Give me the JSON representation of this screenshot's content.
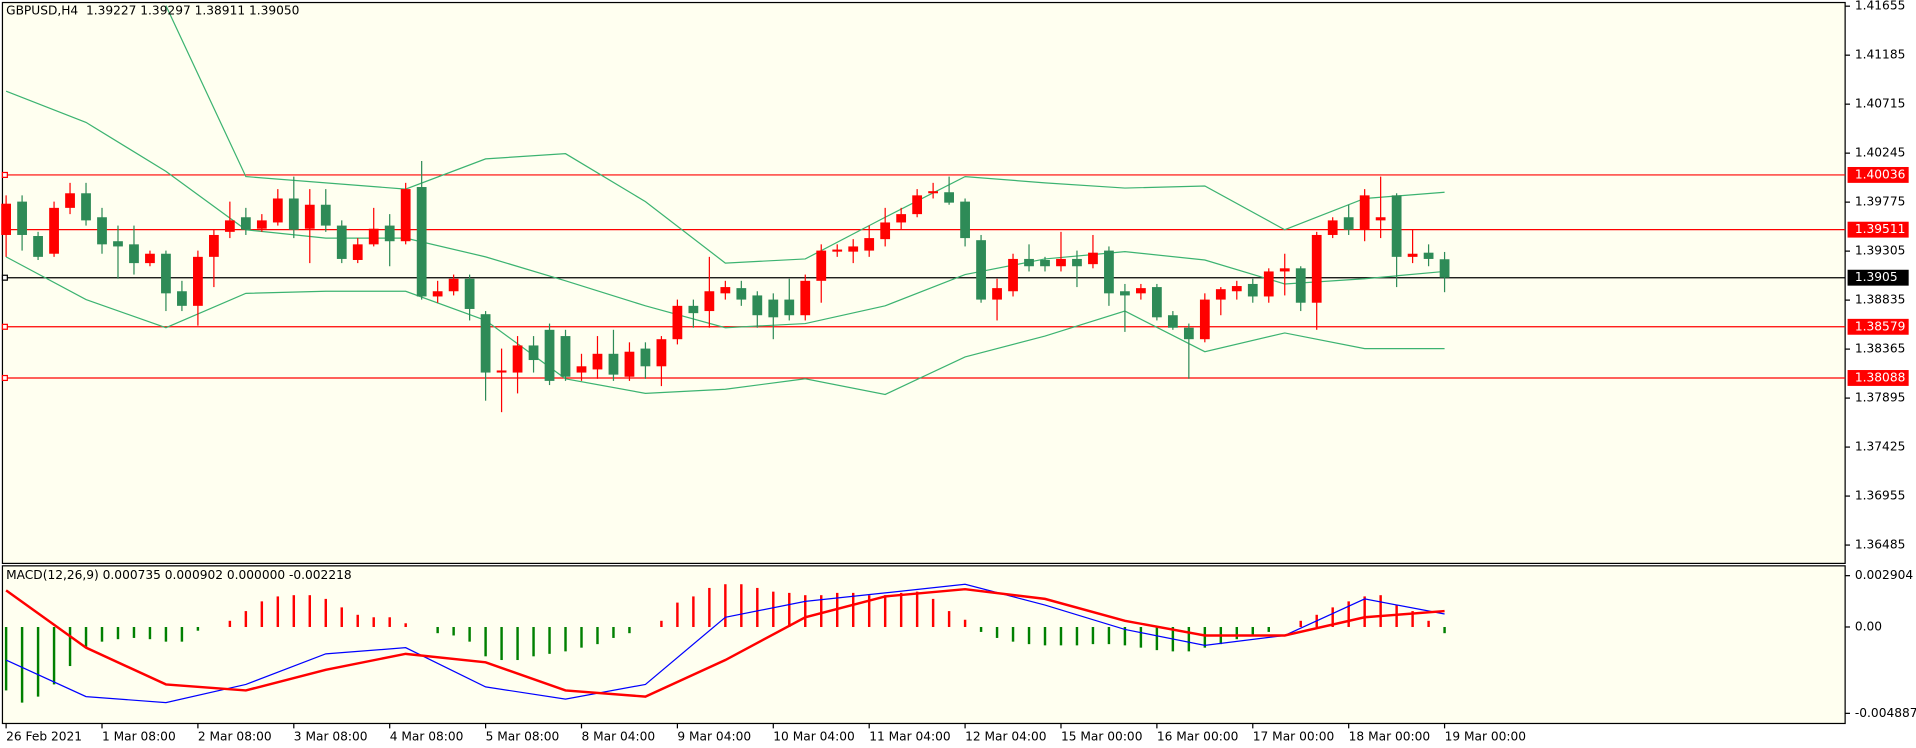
{
  "chart_data": [
    {
      "type": "candlestick",
      "title": "GBPUSD,H4  1.39227 1.39297 1.38911 1.39050",
      "categories": [
        "26 Feb 2021",
        null,
        null,
        null,
        null,
        null,
        "1 Mar 08:00",
        null,
        null,
        null,
        null,
        null,
        "2 Mar 08:00",
        null,
        null,
        null,
        null,
        null,
        "3 Mar 08:00",
        null,
        null,
        null,
        null,
        null,
        "4 Mar 08:00",
        null,
        null,
        null,
        null,
        null,
        "5 Mar 08:00",
        null,
        null,
        null,
        null,
        null,
        "8 Mar 04:00",
        null,
        null,
        null,
        null,
        null,
        "9 Mar 04:00",
        null,
        null,
        null,
        null,
        null,
        "10 Mar 04:00",
        null,
        null,
        null,
        null,
        null,
        "11 Mar 04:00",
        null,
        null,
        null,
        null,
        null,
        "12 Mar 04:00",
        null,
        null,
        null,
        null,
        null,
        "15 Mar 00:00",
        null,
        null,
        null,
        null,
        null,
        "16 Mar 00:00",
        null,
        null,
        null,
        null,
        null,
        "17 Mar 00:00",
        null,
        null,
        null,
        null,
        null,
        "18 Mar 00:00",
        null,
        null,
        null,
        null,
        null,
        "19 Mar 00:00"
      ],
      "open": [
        1.3946,
        1.3978,
        1.3945,
        1.3928,
        1.3972,
        1.3986,
        1.3963,
        1.394,
        1.3937,
        1.3919,
        1.3928,
        1.3892,
        1.3878,
        1.3925,
        1.3949,
        1.3963,
        1.3952,
        1.3958,
        1.3981,
        1.3952,
        1.3975,
        1.3955,
        1.3922,
        1.3937,
        1.3955,
        1.394,
        1.3992,
        1.3887,
        1.3892,
        1.3904,
        1.387,
        1.3814,
        1.3814,
        1.384,
        1.3855,
        1.3849,
        1.3814,
        1.3817,
        1.3832,
        1.381,
        1.3837,
        1.382,
        1.3846,
        1.3878,
        1.3873,
        1.389,
        1.3895,
        1.3888,
        1.3884,
        1.3884,
        1.3869,
        1.3902,
        1.393,
        1.393,
        1.3931,
        1.3942,
        1.3958,
        1.3966,
        1.3986,
        1.3987,
        1.3978,
        1.3941,
        1.3884,
        1.3892,
        1.3923,
        1.3922,
        1.3916,
        1.3923,
        1.3918,
        1.3931,
        1.3892,
        1.389,
        1.3896,
        1.3869,
        1.3857,
        1.3846,
        1.3884,
        1.3892,
        1.3899,
        1.3887,
        1.3911,
        1.3914,
        1.3881,
        1.3946,
        1.3963,
        1.3951,
        1.396,
        1.3984,
        1.3925,
        1.3929,
        1.39227
      ],
      "high": [
        1.3984,
        1.3984,
        1.3949,
        1.3978,
        1.3996,
        1.3996,
        1.3972,
        1.3955,
        1.3955,
        1.3931,
        1.3931,
        1.3902,
        1.3931,
        1.3951,
        1.3978,
        1.3972,
        1.3966,
        1.399,
        1.4002,
        1.399,
        1.399,
        1.396,
        1.3943,
        1.3972,
        1.3966,
        1.3996,
        1.4017,
        1.3902,
        1.3908,
        1.3908,
        1.3873,
        1.3837,
        1.3849,
        1.3849,
        1.3861,
        1.3855,
        1.3832,
        1.3849,
        1.3855,
        1.3843,
        1.3843,
        1.3849,
        1.3884,
        1.3884,
        1.3925,
        1.3902,
        1.3902,
        1.3892,
        1.389,
        1.3904,
        1.3908,
        1.3937,
        1.3937,
        1.3942,
        1.3955,
        1.3972,
        1.3972,
        1.399,
        1.3996,
        1.4002,
        1.3981,
        1.3946,
        1.3904,
        1.3928,
        1.3937,
        1.3925,
        1.3949,
        1.3931,
        1.3946,
        1.3935,
        1.3899,
        1.3899,
        1.3899,
        1.3873,
        1.3861,
        1.389,
        1.3896,
        1.3902,
        1.3904,
        1.3914,
        1.3928,
        1.3916,
        1.3949,
        1.3963,
        1.3975,
        1.399,
        1.4002,
        1.3986,
        1.3951,
        1.3937,
        1.39297
      ],
      "low": [
        1.3925,
        1.3931,
        1.3922,
        1.3925,
        1.3966,
        1.3955,
        1.3928,
        1.3904,
        1.3908,
        1.3916,
        1.3873,
        1.3873,
        1.3859,
        1.3896,
        1.3943,
        1.3946,
        1.3949,
        1.3955,
        1.3943,
        1.3919,
        1.3949,
        1.3919,
        1.3919,
        1.3935,
        1.3916,
        1.3937,
        1.3884,
        1.3881,
        1.3888,
        1.3864,
        1.3787,
        1.3776,
        1.3794,
        1.3814,
        1.3802,
        1.3806,
        1.3806,
        1.3808,
        1.3806,
        1.3806,
        1.3808,
        1.3801,
        1.3841,
        1.3857,
        1.3857,
        1.3884,
        1.3878,
        1.3857,
        1.3846,
        1.3864,
        1.3864,
        1.3881,
        1.3925,
        1.3919,
        1.3925,
        1.3935,
        1.3951,
        1.3963,
        1.3981,
        1.3975,
        1.3935,
        1.3881,
        1.3864,
        1.3887,
        1.3911,
        1.3911,
        1.3911,
        1.3896,
        1.3914,
        1.3878,
        1.3853,
        1.3884,
        1.3864,
        1.3855,
        1.3808,
        1.3843,
        1.3869,
        1.3884,
        1.3881,
        1.3881,
        1.3888,
        1.3873,
        1.3855,
        1.3943,
        1.3946,
        1.394,
        1.3943,
        1.3896,
        1.3919,
        1.3916,
        1.38911
      ],
      "close": [
        1.3976,
        1.3946,
        1.3925,
        1.3972,
        1.3986,
        1.396,
        1.3937,
        1.3935,
        1.3919,
        1.3928,
        1.389,
        1.3878,
        1.3925,
        1.3946,
        1.396,
        1.3951,
        1.396,
        1.3981,
        1.3951,
        1.3975,
        1.3955,
        1.3923,
        1.3937,
        1.3952,
        1.394,
        1.399,
        1.3887,
        1.3892,
        1.3904,
        1.3875,
        1.3814,
        1.3816,
        1.384,
        1.3826,
        1.3806,
        1.381,
        1.382,
        1.3832,
        1.3812,
        1.3834,
        1.382,
        1.3846,
        1.3878,
        1.3871,
        1.3892,
        1.3896,
        1.3884,
        1.3869,
        1.3867,
        1.3869,
        1.3902,
        1.3931,
        1.3932,
        1.3935,
        1.3943,
        1.3958,
        1.3966,
        1.3984,
        1.3988,
        1.3977,
        1.3943,
        1.3884,
        1.3895,
        1.3923,
        1.3916,
        1.3916,
        1.3923,
        1.3916,
        1.3929,
        1.389,
        1.3888,
        1.3895,
        1.3867,
        1.3857,
        1.3846,
        1.3884,
        1.3894,
        1.3897,
        1.3887,
        1.3911,
        1.3914,
        1.3881,
        1.3946,
        1.396,
        1.3951,
        1.3984,
        1.3963,
        1.3925,
        1.3928,
        1.3923,
        1.3905
      ],
      "up_color": "#ff0000",
      "down_color": "#2e8b57",
      "series": [
        {
          "color": "#3cb371",
          "x": [
            0,
            5,
            10,
            15,
            20,
            25,
            30,
            35,
            40,
            45,
            50,
            55,
            60,
            65,
            70,
            75,
            80,
            85,
            90
          ],
          "values": [
            null,
            null,
            1.4166,
            1.4002,
            1.3996,
            1.399,
            1.4019,
            1.4024,
            1.3978,
            1.3919,
            1.3923,
            1.3963,
            1.4002,
            1.3996,
            1.3991,
            1.3993,
            1.3951,
            1.3981,
            1.3987
          ]
        },
        {
          "color": "#3cb371",
          "x": [
            0,
            5,
            10,
            15,
            20,
            25,
            30,
            35,
            40,
            45,
            50,
            55,
            60,
            65,
            70,
            75,
            80,
            85,
            90
          ],
          "values": [
            1.4084,
            1.4054,
            1.4007,
            1.3951,
            1.3943,
            1.3943,
            1.3925,
            1.3902,
            1.3878,
            1.3857,
            1.3861,
            1.3878,
            1.3908,
            1.3923,
            1.393,
            1.3922,
            1.3899,
            1.3904,
            1.3911
          ]
        },
        {
          "color": "#3cb371",
          "x": [
            0,
            5,
            10,
            15,
            20,
            25,
            30,
            35,
            40,
            45,
            50,
            55,
            60,
            65,
            70,
            75,
            80,
            85,
            90
          ],
          "values": [
            1.3925,
            1.3884,
            1.3857,
            1.389,
            1.3892,
            1.3892,
            1.3864,
            1.3808,
            1.3794,
            1.3798,
            1.3808,
            1.3793,
            1.3829,
            1.3849,
            1.3873,
            1.3834,
            1.3852,
            1.3837,
            1.3837
          ]
        }
      ],
      "levels": [
        {
          "value": 1.40036,
          "color": "#ff0000"
        },
        {
          "value": 1.39511,
          "color": "#ff0000"
        },
        {
          "value": 1.3905,
          "color": "#000000"
        },
        {
          "value": 1.38579,
          "color": "#ff0000"
        },
        {
          "value": 1.38088,
          "color": "#ff0000"
        }
      ],
      "ylim": [
        1.36309,
        1.4169
      ],
      "yticks": [
        1.41655,
        1.41185,
        1.40715,
        1.40245,
        1.39775,
        1.39305,
        1.38835,
        1.38365,
        1.37895,
        1.37425,
        1.36955,
        1.36485
      ]
    },
    {
      "type": "macd",
      "title": "MACD(12,26,9) 0.000735 0.000902 0.000000 -0.002218",
      "histogram": {
        "up_color": "#ff0000",
        "down_color": "#008000",
        "values": [
          -0.00359,
          -0.00428,
          -0.00394,
          -0.00325,
          -0.00221,
          -0.00117,
          -0.00083,
          -0.00069,
          -0.00062,
          -0.00069,
          -0.00083,
          -0.00083,
          -0.00021,
          0,
          0.00035,
          0.0009,
          0.00145,
          0.00173,
          0.0018,
          0.0018,
          0.00159,
          0.00111,
          0.00069,
          0.00055,
          0.00055,
          0.00021,
          0,
          -0.00035,
          -0.00048,
          -0.00083,
          -0.00166,
          -0.00187,
          -0.00187,
          -0.00166,
          -0.00152,
          -0.00138,
          -0.00117,
          -0.00097,
          -0.00062,
          -0.00035,
          0,
          0.00035,
          0.00138,
          0.00173,
          0.00221,
          0.00242,
          0.00242,
          0.00221,
          0.002,
          0.00193,
          0.0018,
          0.0018,
          0.00193,
          0.00193,
          0.0018,
          0.0018,
          0.00193,
          0.002,
          0.00159,
          0.0009,
          0.00041,
          -0.00028,
          -0.00062,
          -0.00083,
          -0.00097,
          -0.00104,
          -0.00104,
          -0.00104,
          -0.00097,
          -0.00097,
          -0.00104,
          -0.00117,
          -0.00131,
          -0.00138,
          -0.00138,
          -0.00117,
          -0.00097,
          -0.00069,
          -0.00048,
          -0.00028,
          0,
          0.00035,
          0.00069,
          0.00111,
          0.00145,
          0.00173,
          0.0018,
          0.00124,
          0.0009,
          0.00035,
          -0.00035
        ]
      },
      "series": [
        {
          "color": "#0000ff",
          "line_width": 1,
          "x": [
            0,
            5,
            10,
            15,
            20,
            25,
            30,
            35,
            40,
            45,
            50,
            55,
            60,
            65,
            70,
            75,
            80,
            85,
            90
          ],
          "values": [
            -0.00187,
            -0.00394,
            -0.00428,
            -0.00325,
            -0.00152,
            -0.00117,
            -0.00339,
            -0.00408,
            -0.00325,
            0.00055,
            0.00145,
            0.00193,
            0.00242,
            0.00124,
            -0.00014,
            -0.00104,
            -0.00048,
            0.00159,
            0.000735
          ]
        },
        {
          "color": "#ff0000",
          "line_width": 2,
          "x": [
            0,
            5,
            10,
            15,
            20,
            25,
            30,
            35,
            40,
            45,
            50,
            55,
            60,
            65,
            70,
            75,
            80,
            85,
            90
          ],
          "values": [
            0.00207,
            -0.00117,
            -0.00325,
            -0.00359,
            -0.00242,
            -0.00152,
            -0.002,
            -0.00359,
            -0.00394,
            -0.00187,
            0.00055,
            0.00173,
            0.00214,
            0.00159,
            0.00035,
            -0.00048,
            -0.00048,
            0.00055,
            0.000902
          ]
        }
      ],
      "ylim": [
        -0.00546,
        0.00346
      ],
      "yticks": [
        0.002904,
        {
          "value": 0,
          "label": "0.00"
        },
        -0.004887
      ]
    }
  ]
}
